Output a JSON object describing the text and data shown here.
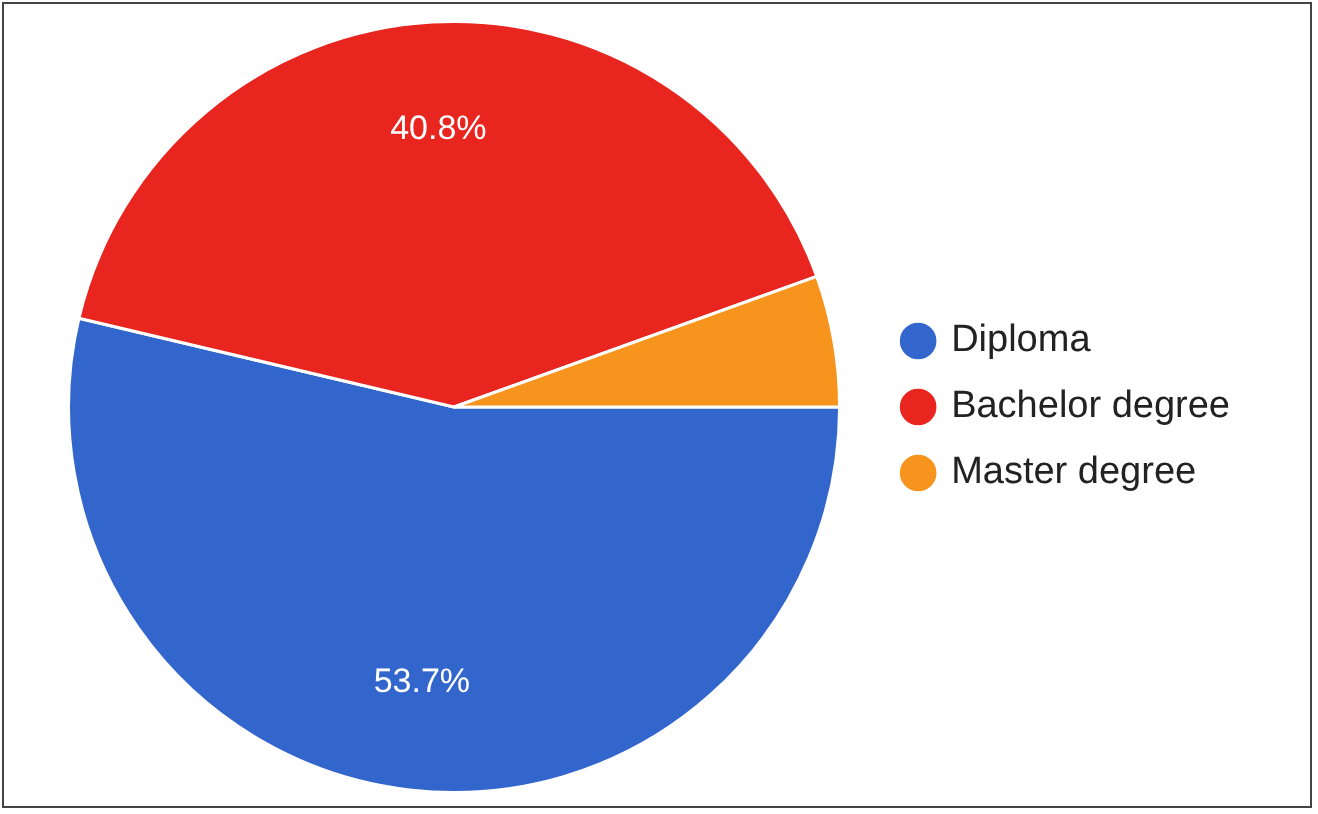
{
  "chart_data": {
    "type": "pie",
    "categories": [
      "Diploma",
      "Bachelor degree",
      "Master degree"
    ],
    "values": [
      53.7,
      40.8,
      5.5
    ],
    "colors": [
      "#3366cc",
      "#e8251f",
      "#f7941d"
    ],
    "value_labels": [
      "53.7%",
      "40.8%",
      null
    ],
    "legend": "right"
  }
}
